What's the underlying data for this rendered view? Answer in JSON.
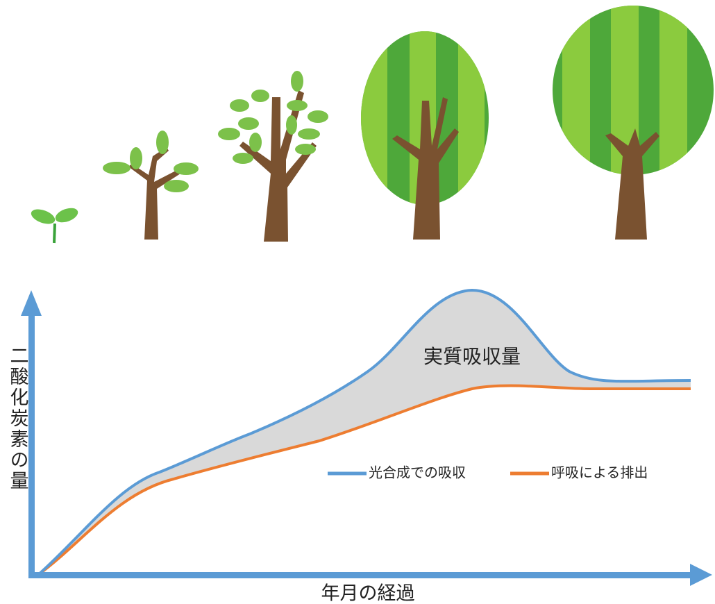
{
  "illustration": {
    "y_axis_label": "二酸化炭素の量",
    "x_axis_label": "年月の経過",
    "area_label": "実質吸収量",
    "legend": [
      "光合成での吸収",
      "呼吸による排出"
    ]
  }
}
